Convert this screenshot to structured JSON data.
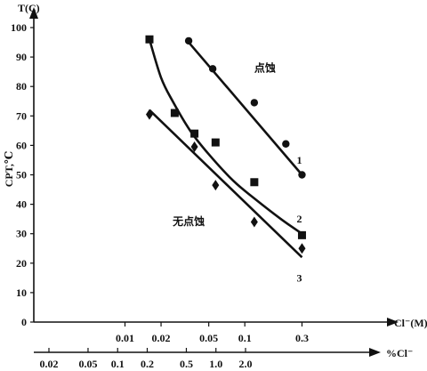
{
  "chart_data": {
    "type": "scatter",
    "y_axis": {
      "title_top": "T(C)",
      "title_side": "CPT,℃",
      "range": [
        0,
        100
      ],
      "ticks": [
        0,
        10,
        20,
        30,
        40,
        50,
        60,
        70,
        80,
        90,
        100
      ]
    },
    "x_axis_molar": {
      "label": "Cl⁻(M)",
      "scale": "log",
      "ticks": [
        {
          "value": 0.01,
          "label": "0.01"
        },
        {
          "value": 0.02,
          "label": "0.02"
        },
        {
          "value": 0.05,
          "label": "0.05"
        },
        {
          "value": 0.1,
          "label": "0.1"
        },
        {
          "value": 0.3,
          "label": "0.3"
        }
      ]
    },
    "x_axis_percent": {
      "label": "%Cl⁻",
      "scale": "log",
      "ticks": [
        {
          "value": 0.02,
          "label": "0.02"
        },
        {
          "value": 0.05,
          "label": "0.05"
        },
        {
          "value": 0.1,
          "label": "0.1"
        },
        {
          "value": 0.2,
          "label": "0.2"
        },
        {
          "value": 0.5,
          "label": "0.5"
        },
        {
          "value": 1.0,
          "label": "1.0"
        },
        {
          "value": 2.0,
          "label": "2.0"
        }
      ]
    },
    "regions": [
      {
        "text": "点蚀",
        "x": 0.12,
        "y": 85
      },
      {
        "text": "无点蚀",
        "x": 0.025,
        "y": 33
      }
    ],
    "series": [
      {
        "label": "1",
        "marker": "circle",
        "points": [
          [
            0.034,
            95.5
          ],
          [
            0.054,
            86
          ],
          [
            0.12,
            74.5
          ],
          [
            0.22,
            60.5
          ],
          [
            0.3,
            50
          ]
        ],
        "fit": "line",
        "fit_range": [
          0.034,
          0.3
        ],
        "fit_y": [
          95,
          50
        ],
        "label_at": [
          0.3,
          55
        ]
      },
      {
        "label": "2",
        "marker": "square",
        "points": [
          [
            0.016,
            96
          ],
          [
            0.026,
            71
          ],
          [
            0.038,
            64
          ],
          [
            0.057,
            61
          ],
          [
            0.12,
            47.5
          ],
          [
            0.3,
            29.5
          ]
        ],
        "fit": "curve",
        "fit_points": [
          [
            0.016,
            96
          ],
          [
            0.02,
            83
          ],
          [
            0.025,
            75
          ],
          [
            0.035,
            65
          ],
          [
            0.05,
            57
          ],
          [
            0.08,
            48
          ],
          [
            0.12,
            42
          ],
          [
            0.2,
            35
          ],
          [
            0.3,
            30
          ]
        ],
        "label_at": [
          0.3,
          35
        ]
      },
      {
        "label": "3",
        "marker": "diamond",
        "points": [
          [
            0.016,
            70.5
          ],
          [
            0.038,
            59.5
          ],
          [
            0.057,
            46.5
          ],
          [
            0.12,
            34
          ],
          [
            0.3,
            25
          ]
        ],
        "fit": "line",
        "fit_range": [
          0.016,
          0.3
        ],
        "fit_y": [
          72,
          22
        ],
        "label_at": [
          0.3,
          15
        ]
      }
    ]
  }
}
